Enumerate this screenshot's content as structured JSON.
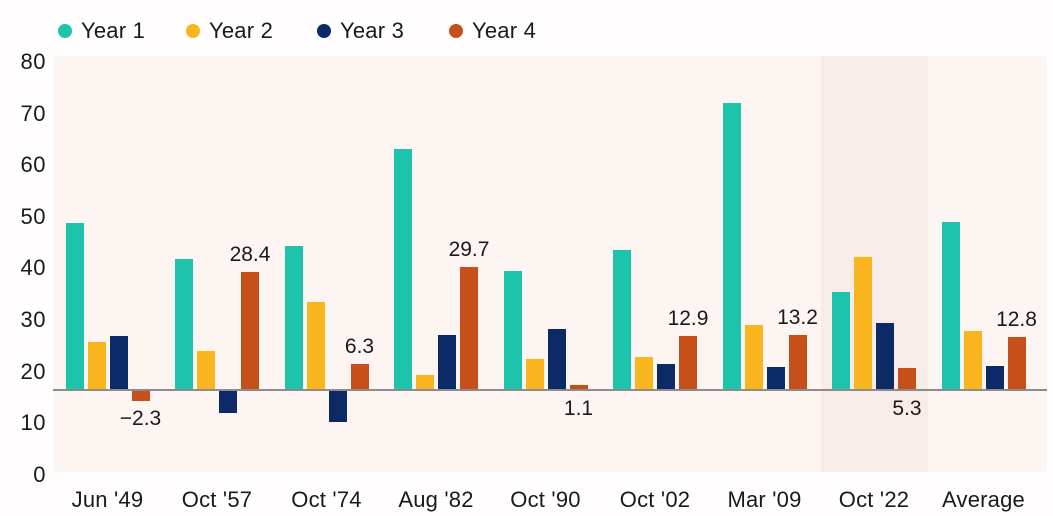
{
  "colors": {
    "page_background": "#fffdfd",
    "plot_background": "#fcf5f2",
    "highlight_band": "#f7ece7",
    "axis_line": "#8c8c8c",
    "text": "#1a1a1a"
  },
  "chart_data": {
    "type": "bar",
    "title": "",
    "categories": [
      "Jun '49",
      "Oct '57",
      "Oct '74",
      "Aug '82",
      "Oct '90",
      "Oct '02",
      "Mar '09",
      "Oct '22",
      "Average"
    ],
    "series": [
      {
        "name": "Year 1",
        "color": "#1ec3ac",
        "values": [
          40.2,
          31.6,
          34.7,
          58.0,
          28.7,
          33.7,
          69.2,
          23.5,
          40.5
        ]
      },
      {
        "name": "Year 2",
        "color": "#f8b51e",
        "values": [
          11.5,
          9.4,
          21.2,
          3.5,
          7.4,
          8.0,
          15.6,
          32.1,
          14.1
        ]
      },
      {
        "name": "Year 3",
        "color": "#0c2a66",
        "values": [
          12.9,
          -5.3,
          -7.5,
          13.2,
          14.8,
          6.2,
          5.6,
          16.2,
          5.8
        ]
      },
      {
        "name": "Year 4",
        "color": "#c7501a",
        "values": [
          -2.3,
          28.4,
          6.3,
          29.7,
          1.1,
          12.9,
          13.2,
          5.3,
          12.8
        ],
        "data_labels": [
          {
            "text": "−2.3",
            "position": "below"
          },
          {
            "text": "28.4",
            "position": "above"
          },
          {
            "text": "6.3",
            "position": "above"
          },
          {
            "text": "29.7",
            "position": "above"
          },
          {
            "text": "1.1",
            "position": "below"
          },
          {
            "text": "12.9",
            "position": "above"
          },
          {
            "text": "13.2",
            "position": "above"
          },
          {
            "text": "5.3",
            "position": "below"
          },
          {
            "text": "12.8",
            "position": "above"
          }
        ]
      }
    ],
    "y_axis": {
      "min": 0,
      "max": 80,
      "tick_labels": [
        "80",
        "70",
        "60",
        "50",
        "40",
        "30",
        "20",
        "10",
        "0"
      ]
    },
    "highlighted_category": "Oct '22",
    "legend_position": "top-left",
    "grid": "off"
  }
}
